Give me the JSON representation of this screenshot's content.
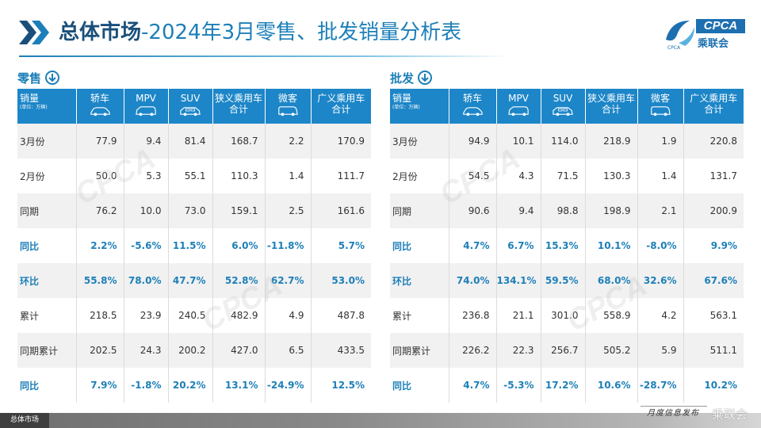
{
  "header": {
    "title_highlight": "总体市场",
    "title_rest": "-2024年3月零售、批发销量分析表",
    "logo_text": "CPCA",
    "logo_sub": "乘联会",
    "logo_mark_text": "CPCA"
  },
  "columns": [
    {
      "label": "销量",
      "sub": "(单位：万辆)",
      "icon": "none"
    },
    {
      "label": "轿车",
      "icon": "sedan-icon"
    },
    {
      "label": "MPV",
      "icon": "mpv-icon"
    },
    {
      "label": "SUV",
      "icon": "suv-icon"
    },
    {
      "label": "狭义乘用车",
      "label2": "合计",
      "icon": "none"
    },
    {
      "label": "微客",
      "icon": "minivan-icon"
    },
    {
      "label": "广义乘用车",
      "label2": "合计",
      "icon": "none"
    }
  ],
  "retail": {
    "title": "零售",
    "rows": [
      {
        "label": "3月份",
        "values": [
          "77.9",
          "9.4",
          "81.4",
          "168.7",
          "2.2",
          "170.9"
        ],
        "ratio": false
      },
      {
        "label": "2月份",
        "values": [
          "50.0",
          "5.3",
          "55.1",
          "110.3",
          "1.4",
          "111.7"
        ],
        "ratio": false
      },
      {
        "label": "同期",
        "values": [
          "76.2",
          "10.0",
          "73.0",
          "159.1",
          "2.5",
          "161.6"
        ],
        "ratio": false
      },
      {
        "label": "同比",
        "values": [
          "2.2%",
          "-5.6%",
          "11.5%",
          "6.0%",
          "-11.8%",
          "5.7%"
        ],
        "ratio": true
      },
      {
        "label": "环比",
        "values": [
          "55.8%",
          "78.0%",
          "47.7%",
          "52.8%",
          "62.7%",
          "53.0%"
        ],
        "ratio": true
      },
      {
        "label": "累计",
        "values": [
          "218.5",
          "23.9",
          "240.5",
          "482.9",
          "4.9",
          "487.8"
        ],
        "ratio": false
      },
      {
        "label": "同期累计",
        "values": [
          "202.5",
          "24.3",
          "200.2",
          "427.0",
          "6.5",
          "433.5"
        ],
        "ratio": false
      },
      {
        "label": "同比",
        "values": [
          "7.9%",
          "-1.8%",
          "20.2%",
          "13.1%",
          "-24.9%",
          "12.5%"
        ],
        "ratio": true
      }
    ]
  },
  "wholesale": {
    "title": "批发",
    "rows": [
      {
        "label": "3月份",
        "values": [
          "94.9",
          "10.1",
          "114.0",
          "218.9",
          "1.9",
          "220.8"
        ],
        "ratio": false
      },
      {
        "label": "2月份",
        "values": [
          "54.5",
          "4.3",
          "71.5",
          "130.3",
          "1.4",
          "131.7"
        ],
        "ratio": false
      },
      {
        "label": "同期",
        "values": [
          "90.6",
          "9.4",
          "98.8",
          "198.9",
          "2.1",
          "200.9"
        ],
        "ratio": false
      },
      {
        "label": "同比",
        "values": [
          "4.7%",
          "6.7%",
          "15.3%",
          "10.1%",
          "-8.0%",
          "9.9%"
        ],
        "ratio": true
      },
      {
        "label": "环比",
        "values": [
          "74.0%",
          "134.1%",
          "59.5%",
          "68.0%",
          "32.6%",
          "67.6%"
        ],
        "ratio": true
      },
      {
        "label": "累计",
        "values": [
          "236.8",
          "21.1",
          "301.0",
          "558.9",
          "4.2",
          "563.1"
        ],
        "ratio": false
      },
      {
        "label": "同期累计",
        "values": [
          "226.2",
          "22.3",
          "256.7",
          "505.2",
          "5.9",
          "511.1"
        ],
        "ratio": false
      },
      {
        "label": "同比",
        "values": [
          "4.7%",
          "-5.3%",
          "17.2%",
          "10.6%",
          "-28.7%",
          "10.2%"
        ],
        "ratio": true
      }
    ]
  },
  "footer": {
    "tabs": [
      {
        "label": "总体市场",
        "active": true
      },
      {
        "label": "",
        "active": false
      },
      {
        "label": "",
        "active": false
      },
      {
        "label": "",
        "active": false
      }
    ],
    "slogan": "月度信息发布",
    "brand": "乘联会"
  },
  "colors": {
    "accent": "#1d7fb8",
    "header_bg": "#1d86c8",
    "title_dark": "#1a4f7a",
    "row_alt": "#f1f1f1"
  }
}
